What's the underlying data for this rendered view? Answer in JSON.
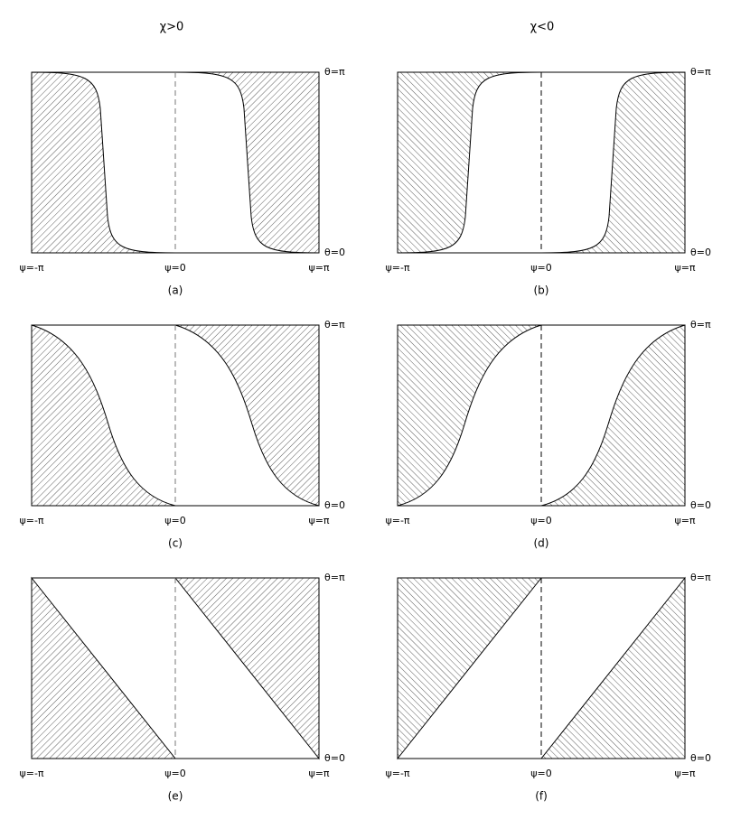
{
  "headers": [
    "χ>0",
    "χ<0"
  ],
  "panels": [
    {
      "label": "(a)",
      "x_labels": [
        "ψ=-π",
        "ψ=0",
        "ψ=π"
      ],
      "y_labels": [
        "θ=π",
        "θ=0"
      ]
    },
    {
      "label": "(b)",
      "x_labels": [
        "ψ=-π",
        "ψ=0",
        "ψ=π"
      ],
      "y_labels": [
        "θ=π",
        "θ=0"
      ]
    },
    {
      "label": "(c)",
      "x_labels": [
        "ψ=-π",
        "ψ=0",
        "ψ=π"
      ],
      "y_labels": [
        "θ=π",
        "θ=0"
      ]
    },
    {
      "label": "(d)",
      "x_labels": [
        "ψ=-π",
        "ψ=0",
        "ψ=π"
      ],
      "y_labels": [
        "θ=π",
        "θ=0"
      ]
    },
    {
      "label": "(e)",
      "x_labels": [
        "ψ=-π",
        "ψ=0",
        "ψ=π"
      ],
      "y_labels": [
        "θ=π",
        "θ=0"
      ]
    },
    {
      "label": "(f)",
      "x_labels": [
        "ψ=-π",
        "ψ=0",
        "ψ=π"
      ],
      "y_labels": [
        "θ=π",
        "θ=0"
      ]
    }
  ]
}
